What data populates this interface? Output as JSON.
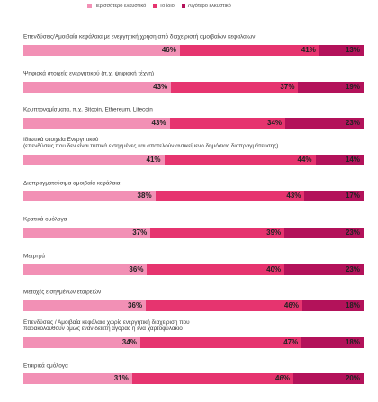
{
  "chart_data": {
    "type": "bar",
    "orientation": "horizontal",
    "stacked": "percent",
    "grid": false,
    "legend_position": "top",
    "value_suffix": "%",
    "categories": [
      "Επενδύσεις/Αμοιβαία κεφάλαια με ενεργητική χρήση από διαχειριστή αμοιβαίων κεφαλαίων",
      "Ψηφιακά στοιχεία ενεργητικού (π.χ. ψηφιακή τέχνη)",
      "Κρυπτονομίσματα, π.χ. Bitcoin, Ethereum, Litecoin",
      "Ιδιωτικά στοιχεία Ενεργητικού\n(επενδύσεις που δεν είναι τυπικά εισηγμένες και αποτελούν αντικείμενο δημόσιας διαπραγμάτευσης)",
      "Διαπραγματεύσιμα αμοιβαία κεφάλαια",
      "Κρατικά ομόλογα",
      "Μετρητά",
      "Μετοχές εισηγμένων εταιρειών",
      "Επενδύσεις / Αμοιβαία κεφάλαια χωρίς ενεργητική διαχείριση που\nπαρακολουθούν όμως έναν δείκτη αγοράς ή ένα χαρτοφυλάκιο",
      "Εταιρικά ομόλογα"
    ],
    "series": [
      {
        "name": "Περισσότερο ελκυστικό",
        "color": "#F290B5",
        "values": [
          46,
          43,
          43,
          41,
          38,
          37,
          36,
          36,
          34,
          31
        ]
      },
      {
        "name": "Το ίδιο",
        "color": "#E6346F",
        "values": [
          41,
          37,
          34,
          44,
          43,
          39,
          40,
          46,
          47,
          46
        ]
      },
      {
        "name": "Λιγότερο ελκυστικό",
        "color": "#B3125A",
        "values": [
          13,
          19,
          23,
          14,
          17,
          23,
          23,
          18,
          18,
          20
        ]
      }
    ]
  }
}
